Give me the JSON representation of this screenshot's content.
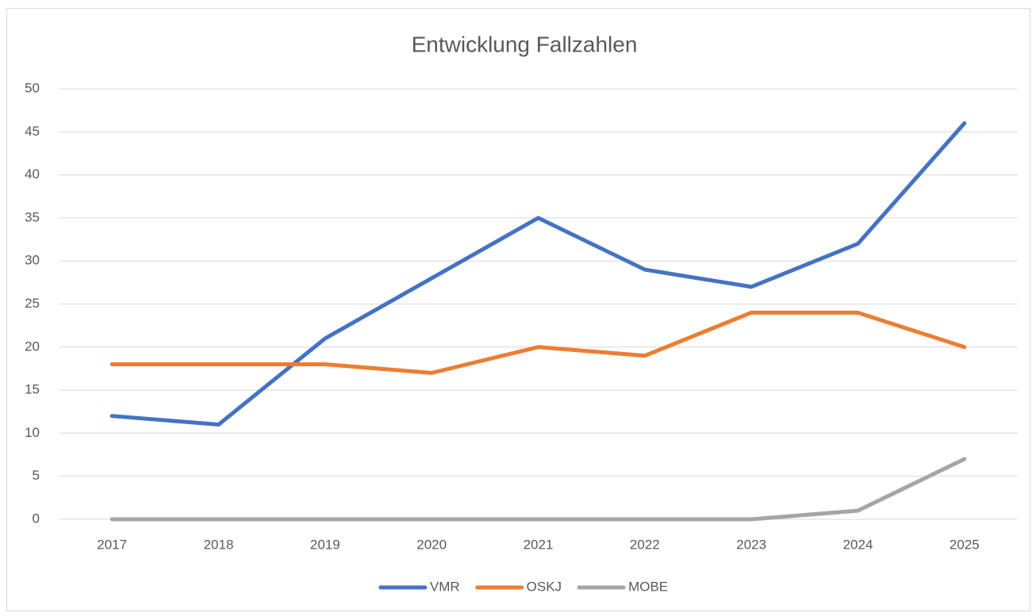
{
  "chart_data": {
    "type": "line",
    "title": "Entwicklung Fallzahlen",
    "categories": [
      "2017",
      "2018",
      "2019",
      "2020",
      "2021",
      "2022",
      "2023",
      "2024",
      "2025"
    ],
    "series": [
      {
        "name": "VMR",
        "color": "#4472c4",
        "values": [
          12,
          11,
          21,
          28,
          35,
          29,
          27,
          32,
          46
        ]
      },
      {
        "name": "OSKJ",
        "color": "#ed7d31",
        "values": [
          18,
          18,
          18,
          17,
          20,
          19,
          24,
          24,
          20
        ]
      },
      {
        "name": "MOBE",
        "color": "#a5a5a5",
        "values": [
          0,
          0,
          0,
          0,
          0,
          0,
          0,
          1,
          7
        ]
      }
    ],
    "ylim": [
      0,
      50
    ],
    "yticks": [
      0,
      5,
      10,
      15,
      20,
      25,
      30,
      35,
      40,
      45,
      50
    ],
    "grid": true,
    "legend": "bottom"
  }
}
